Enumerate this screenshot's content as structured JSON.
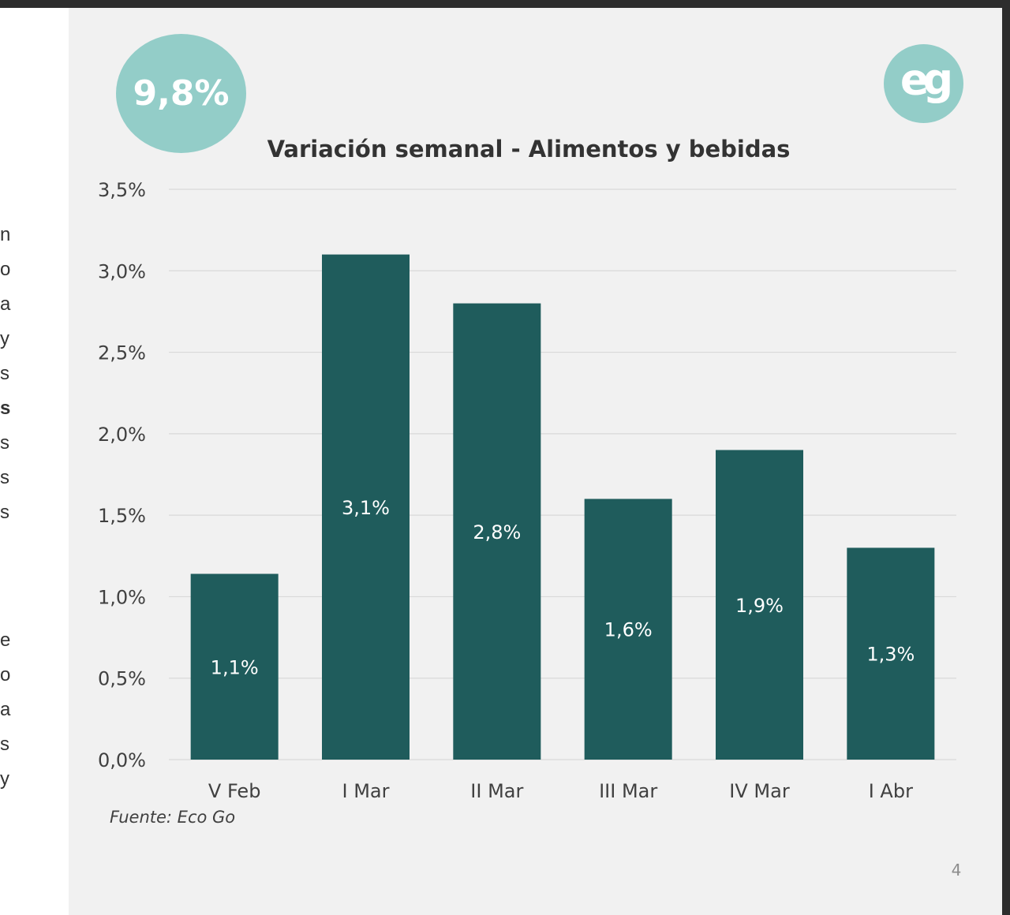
{
  "left_fragments": [
    "n",
    "o",
    "a",
    "y",
    "s",
    "s",
    "s",
    "s",
    "s",
    "e",
    "o",
    "a",
    "s",
    "y"
  ],
  "badge": {
    "value": "9,8%"
  },
  "logo": {
    "text": "eg"
  },
  "colors": {
    "bar": "#1f5c5c",
    "accent": "#93cdc8",
    "slide_bg": "#f1f1f1",
    "grid": "#d9d9d9"
  },
  "chart_data": {
    "type": "bar",
    "title": "Variación semanal - Alimentos y bebidas",
    "categories": [
      "V Feb",
      "I Mar",
      "II Mar",
      "III Mar",
      "IV Mar",
      "I Abr"
    ],
    "values": [
      1.14,
      3.1,
      2.8,
      1.6,
      1.9,
      1.3
    ],
    "data_labels": [
      "1,1%",
      "3,1%",
      "2,8%",
      "1,6%",
      "1,9%",
      "1,3%"
    ],
    "yticks": [
      0,
      0.5,
      1,
      1.5,
      2,
      2.5,
      3,
      3.5
    ],
    "ytick_labels": [
      "0,0%",
      "0,5%",
      "1,0%",
      "1,5%",
      "2,0%",
      "2,5%",
      "3,0%",
      "3,5%"
    ],
    "ylim": [
      0,
      3.5
    ],
    "xlabel": "",
    "ylabel": "",
    "grid": true,
    "legend": "none"
  },
  "source_note": "Fuente: Eco Go",
  "page_number": "4"
}
